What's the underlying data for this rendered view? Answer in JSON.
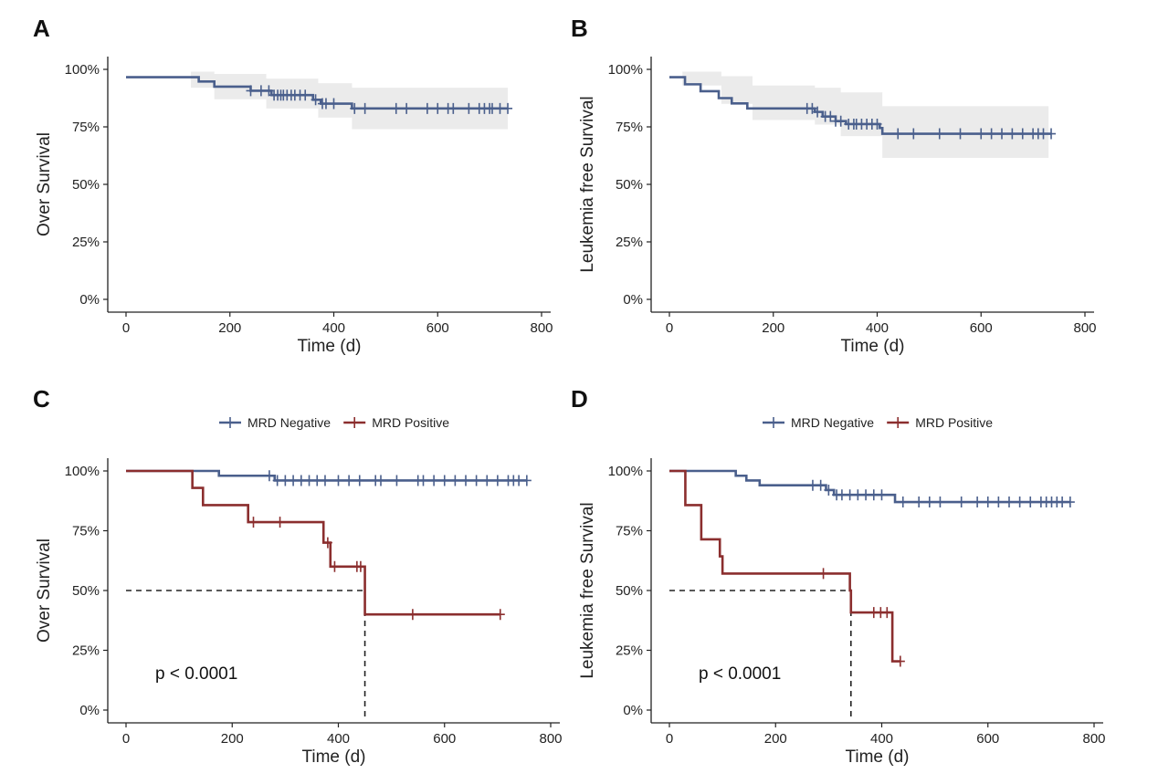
{
  "colors": {
    "mrd_negative": "#4a5f8c",
    "mrd_positive": "#8b2e2e",
    "ci_band": "#ebebeb",
    "axis": "#222222"
  },
  "chart_data": [
    {
      "panel": "A",
      "type": "line",
      "xlabel": "Time (d)",
      "ylabel": "Over Survival",
      "xlim": [
        0,
        800
      ],
      "ylim": [
        0,
        1
      ],
      "x_ticks": [
        0,
        200,
        400,
        600,
        800
      ],
      "x_tick_labels": [
        "0",
        "200",
        "400",
        "600",
        "800"
      ],
      "y_ticks": [
        0,
        0.25,
        0.5,
        0.75,
        1
      ],
      "y_tick_labels": [
        "0%",
        "25%",
        "50%",
        "75%",
        "100%"
      ],
      "legend": [],
      "series": [
        {
          "color": "#4a5f8c",
          "steps": [
            [
              0,
              0.966
            ],
            [
              125,
              0.966
            ],
            [
              140,
              0.947
            ],
            [
              170,
              0.925
            ],
            [
              240,
              0.907
            ],
            [
              280,
              0.888
            ],
            [
              360,
              0.868
            ],
            [
              375,
              0.851
            ],
            [
              435,
              0.83
            ],
            [
              735,
              0.83
            ]
          ],
          "censor": [
            240,
            260,
            275,
            285,
            292,
            298,
            303,
            310,
            318,
            325,
            335,
            345,
            365,
            378,
            385,
            400,
            440,
            460,
            520,
            540,
            580,
            600,
            620,
            630,
            660,
            680,
            690,
            700,
            705,
            720,
            735
          ],
          "ci": {
            "x": [
              0,
              125,
              170,
              270,
              370,
              435,
              735
            ],
            "lower": [
              0.966,
              0.92,
              0.87,
              0.83,
              0.79,
              0.74,
              0.74
            ],
            "upper": [
              0.966,
              0.99,
              0.98,
              0.96,
              0.94,
              0.92,
              0.92
            ]
          }
        }
      ]
    },
    {
      "panel": "B",
      "type": "line",
      "xlabel": "Time (d)",
      "ylabel": "Leukemia free Survival",
      "xlim": [
        0,
        800
      ],
      "ylim": [
        0,
        1
      ],
      "x_ticks": [
        0,
        200,
        400,
        600,
        800
      ],
      "x_tick_labels": [
        "0",
        "200",
        "400",
        "600",
        "800"
      ],
      "y_ticks": [
        0,
        0.25,
        0.5,
        0.75,
        1
      ],
      "y_tick_labels": [
        "0%",
        "25%",
        "50%",
        "75%",
        "100%"
      ],
      "legend": [],
      "series": [
        {
          "color": "#4a5f8c",
          "steps": [
            [
              0,
              0.966
            ],
            [
              25,
              0.966
            ],
            [
              30,
              0.935
            ],
            [
              60,
              0.905
            ],
            [
              95,
              0.875
            ],
            [
              120,
              0.852
            ],
            [
              150,
              0.83
            ],
            [
              280,
              0.815
            ],
            [
              295,
              0.795
            ],
            [
              320,
              0.775
            ],
            [
              340,
              0.762
            ],
            [
              405,
              0.745
            ],
            [
              410,
              0.72
            ],
            [
              735,
              0.72
            ]
          ],
          "censor": [
            265,
            275,
            285,
            300,
            310,
            320,
            330,
            345,
            355,
            360,
            370,
            380,
            390,
            400,
            440,
            470,
            520,
            560,
            600,
            620,
            640,
            660,
            680,
            700,
            710,
            720,
            735
          ],
          "ci": {
            "x": [
              0,
              25,
              100,
              160,
              280,
              330,
              410,
              730
            ],
            "lower": [
              0.966,
              0.93,
              0.85,
              0.78,
              0.76,
              0.71,
              0.615,
              0.615
            ],
            "upper": [
              0.966,
              0.99,
              0.97,
              0.93,
              0.92,
              0.9,
              0.84,
              0.84
            ]
          }
        }
      ]
    },
    {
      "panel": "C",
      "type": "line",
      "xlabel": "Time (d)",
      "ylabel": "Over Survival",
      "xlim": [
        0,
        800
      ],
      "ylim": [
        0,
        1
      ],
      "x_ticks": [
        0,
        200,
        400,
        600,
        800
      ],
      "x_tick_labels": [
        "0",
        "200",
        "400",
        "600",
        "800"
      ],
      "y_ticks": [
        0,
        0.25,
        0.5,
        0.75,
        1
      ],
      "y_tick_labels": [
        "0%",
        "25%",
        "50%",
        "75%",
        "100%"
      ],
      "legend": [
        "MRD Negative",
        "MRD Positive"
      ],
      "legend_position": "top",
      "annotation": "p < 0.0001",
      "median_line": {
        "y": 0.5,
        "x": 450
      },
      "series": [
        {
          "name": "MRD Negative",
          "color": "#4a5f8c",
          "steps": [
            [
              0,
              1.0
            ],
            [
              170,
              1.0
            ],
            [
              175,
              0.98
            ],
            [
              275,
              0.98
            ],
            [
              280,
              0.96
            ],
            [
              755,
              0.96
            ]
          ],
          "censor": [
            270,
            285,
            300,
            315,
            330,
            345,
            360,
            375,
            400,
            420,
            440,
            470,
            480,
            510,
            550,
            560,
            580,
            600,
            620,
            640,
            660,
            680,
            700,
            720,
            730,
            740,
            755
          ]
        },
        {
          "name": "MRD Positive",
          "color": "#8b2e2e",
          "steps": [
            [
              0,
              1.0
            ],
            [
              125,
              1.0
            ],
            [
              125,
              0.929
            ],
            [
              145,
              0.929
            ],
            [
              145,
              0.857
            ],
            [
              230,
              0.857
            ],
            [
              230,
              0.786
            ],
            [
              372,
              0.786
            ],
            [
              372,
              0.7
            ],
            [
              385,
              0.7
            ],
            [
              385,
              0.6
            ],
            [
              450,
              0.6
            ],
            [
              450,
              0.4
            ],
            [
              705,
              0.4
            ]
          ],
          "censor": [
            240,
            290,
            380,
            393,
            435,
            442,
            540,
            705
          ]
        }
      ]
    },
    {
      "panel": "D",
      "type": "line",
      "xlabel": "Time (d)",
      "ylabel": "Leukemia free Survival",
      "xlim": [
        0,
        800
      ],
      "ylim": [
        0,
        1
      ],
      "x_ticks": [
        0,
        200,
        400,
        600,
        800
      ],
      "x_tick_labels": [
        "0",
        "200",
        "400",
        "600",
        "800"
      ],
      "y_ticks": [
        0,
        0.25,
        0.5,
        0.75,
        1
      ],
      "y_tick_labels": [
        "0%",
        "25%",
        "50%",
        "75%",
        "100%"
      ],
      "legend": [
        "MRD Negative",
        "MRD Positive"
      ],
      "legend_position": "top",
      "annotation": "p < 0.0001",
      "median_line": {
        "y": 0.5,
        "x": 342
      },
      "series": [
        {
          "name": "MRD Negative",
          "color": "#4a5f8c",
          "steps": [
            [
              0,
              1.0
            ],
            [
              120,
              1.0
            ],
            [
              125,
              0.98
            ],
            [
              145,
              0.96
            ],
            [
              170,
              0.94
            ],
            [
              290,
              0.94
            ],
            [
              295,
              0.92
            ],
            [
              310,
              0.9
            ],
            [
              420,
              0.9
            ],
            [
              425,
              0.87
            ],
            [
              755,
              0.87
            ]
          ],
          "censor": [
            270,
            285,
            300,
            315,
            325,
            340,
            355,
            370,
            385,
            400,
            440,
            470,
            490,
            510,
            550,
            580,
            600,
            620,
            640,
            660,
            680,
            700,
            710,
            720,
            730,
            740,
            755
          ]
        },
        {
          "name": "MRD Positive",
          "color": "#8b2e2e",
          "steps": [
            [
              0,
              1.0
            ],
            [
              30,
              1.0
            ],
            [
              30,
              0.857
            ],
            [
              60,
              0.857
            ],
            [
              60,
              0.714
            ],
            [
              95,
              0.714
            ],
            [
              95,
              0.643
            ],
            [
              100,
              0.643
            ],
            [
              100,
              0.571
            ],
            [
              340,
              0.571
            ],
            [
              340,
              0.5
            ],
            [
              342,
              0.5
            ],
            [
              342,
              0.408
            ],
            [
              420,
              0.408
            ],
            [
              420,
              0.204
            ],
            [
              435,
              0.204
            ]
          ],
          "censor": [
            290,
            385,
            398,
            410,
            435
          ]
        }
      ]
    }
  ]
}
